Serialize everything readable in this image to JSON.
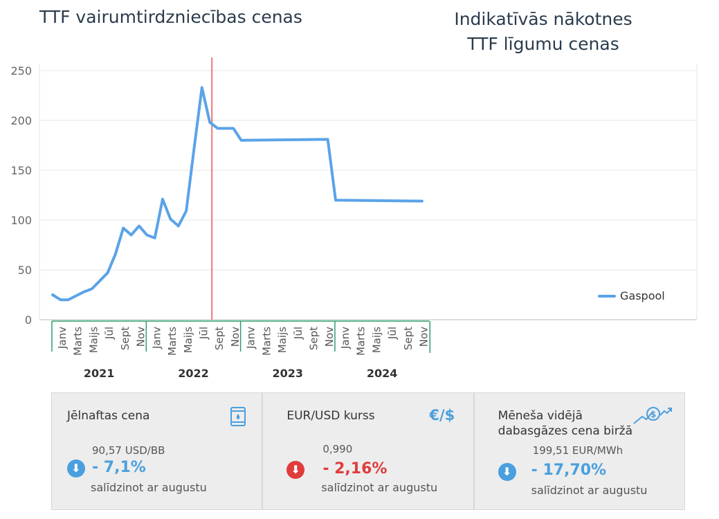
{
  "header": {
    "title_left": "TTF vairumtirdzniecības cenas",
    "title_right_line1": "Indikatīvās nākotnes",
    "title_right_line2": "TTF līgumu cenas"
  },
  "chart_data": {
    "type": "line",
    "ylim": [
      0,
      250
    ],
    "yticks": [
      0,
      50,
      100,
      150,
      200,
      250
    ],
    "grid": true,
    "legend_position": "bottom-right",
    "month_labels": [
      "Janv",
      "Marts",
      "Maijs",
      "Jūl",
      "Sept",
      "Nov"
    ],
    "years": [
      "2021",
      "2022",
      "2023",
      "2024"
    ],
    "divider_after": "2022-09",
    "series": [
      {
        "name": "Gaspool",
        "color": "#5aa3e8",
        "x": [
          "2021-01",
          "2021-02",
          "2021-03",
          "2021-04",
          "2021-05",
          "2021-06",
          "2021-07",
          "2021-08",
          "2021-09",
          "2021-10",
          "2021-11",
          "2021-12",
          "2022-01",
          "2022-02",
          "2022-03",
          "2022-04",
          "2022-05",
          "2022-06",
          "2022-07",
          "2022-08",
          "2022-09",
          "2022-10",
          "2022-11",
          "2022-12",
          "2023-01",
          "2023-12",
          "2024-01",
          "2024-12"
        ],
        "y": [
          25,
          20,
          20,
          24,
          28,
          31,
          39,
          47,
          66,
          92,
          85,
          94,
          85,
          82,
          121,
          101,
          94,
          109,
          172,
          233,
          198,
          192,
          192,
          192,
          180,
          181,
          120,
          119
        ]
      }
    ]
  },
  "cards": [
    {
      "title": "Jēlnaftas cena",
      "icon": "oil-barrel-icon",
      "value": "90,57 USD/BB",
      "change": "- 7,1%",
      "direction": "down",
      "arrow_color": "#4a9fde",
      "change_color": "#4a9fde",
      "note": "salīdzinot ar augustu"
    },
    {
      "title": "EUR/USD kurss",
      "icon": "euro-dollar-icon",
      "icon_text": "€/$",
      "value": "0,990",
      "change": "- 2,16%",
      "direction": "down",
      "arrow_color": "#e03c3c",
      "change_color": "#e03c3c",
      "note": "salīdzinot ar augustu"
    },
    {
      "title_line1": "Mēneša vidējā",
      "title_line2": "dabasgāzes cena biržā",
      "icon": "dollar-growth-icon",
      "value": "199,51 EUR/MWh",
      "change": "- 17,70%",
      "direction": "down",
      "arrow_color": "#4a9fde",
      "change_color": "#4a9fde",
      "note": "salīdzinot ar augustu"
    }
  ]
}
